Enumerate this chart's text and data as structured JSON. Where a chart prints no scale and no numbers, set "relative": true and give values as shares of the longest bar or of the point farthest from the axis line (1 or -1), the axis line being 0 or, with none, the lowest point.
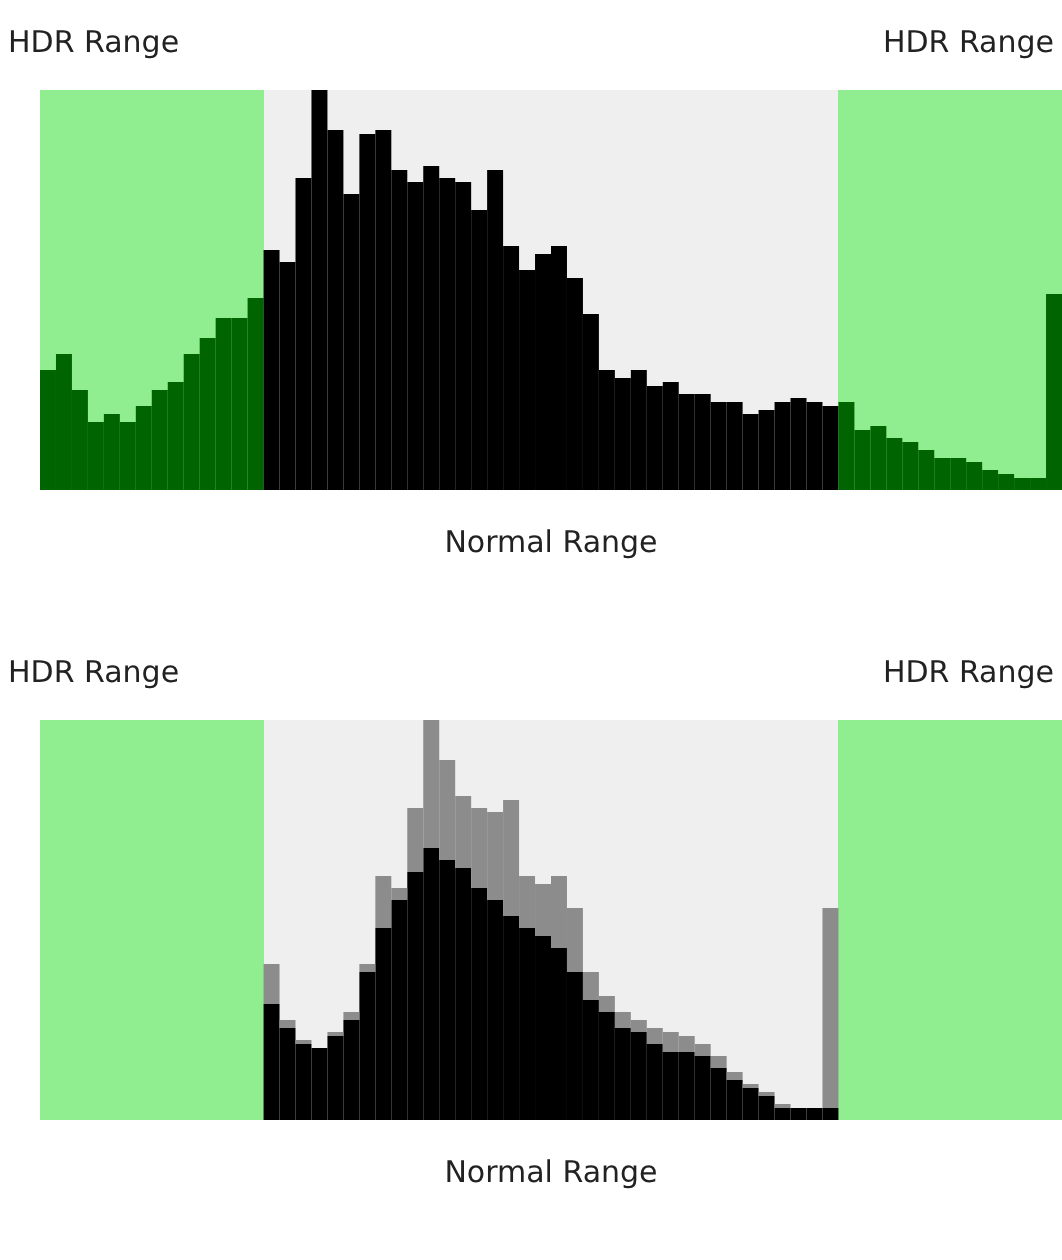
{
  "chart_data": [
    {
      "type": "bar",
      "relative": true,
      "categories": [
        null,
        null,
        null,
        null,
        null,
        null,
        null,
        null,
        null,
        null,
        null,
        null,
        null,
        null,
        null,
        null,
        null,
        null,
        null,
        null,
        null,
        null,
        null,
        null,
        null,
        null,
        null,
        null,
        null,
        null,
        null,
        null,
        null,
        null,
        null,
        null,
        null,
        null,
        null,
        null,
        null,
        null,
        null,
        null,
        null,
        null,
        null,
        null,
        null,
        null,
        null,
        null,
        null,
        null,
        null,
        null,
        null,
        null,
        null,
        null,
        null,
        null,
        null,
        null
      ],
      "values": [
        0.3,
        0.34,
        0.25,
        0.17,
        0.19,
        0.17,
        0.21,
        0.25,
        0.27,
        0.34,
        0.38,
        0.43,
        0.43,
        0.48,
        0.6,
        0.57,
        0.78,
        1.0,
        0.9,
        0.74,
        0.89,
        0.9,
        0.8,
        0.77,
        0.81,
        0.78,
        0.77,
        0.7,
        0.8,
        0.61,
        0.55,
        0.59,
        0.61,
        0.53,
        0.44,
        0.3,
        0.28,
        0.3,
        0.26,
        0.27,
        0.24,
        0.24,
        0.22,
        0.22,
        0.19,
        0.2,
        0.22,
        0.23,
        0.22,
        0.21,
        0.22,
        0.15,
        0.16,
        0.13,
        0.12,
        0.1,
        0.08,
        0.08,
        0.07,
        0.05,
        0.04,
        0.03,
        0.03,
        0.49
      ],
      "colors": [
        "#006400",
        "#006400",
        "#006400",
        "#006400",
        "#006400",
        "#006400",
        "#006400",
        "#006400",
        "#006400",
        "#006400",
        "#006400",
        "#006400",
        "#006400",
        "#006400",
        "#000000",
        "#000000",
        "#000000",
        "#000000",
        "#000000",
        "#000000",
        "#000000",
        "#000000",
        "#000000",
        "#000000",
        "#000000",
        "#000000",
        "#000000",
        "#000000",
        "#000000",
        "#000000",
        "#000000",
        "#000000",
        "#000000",
        "#000000",
        "#000000",
        "#000000",
        "#000000",
        "#000000",
        "#000000",
        "#000000",
        "#000000",
        "#000000",
        "#000000",
        "#000000",
        "#000000",
        "#000000",
        "#000000",
        "#000000",
        "#000000",
        "#000000",
        "#006400",
        "#006400",
        "#006400",
        "#006400",
        "#006400",
        "#006400",
        "#006400",
        "#006400",
        "#006400",
        "#006400",
        "#006400",
        "#006400",
        "#006400",
        "#006400"
      ],
      "annotations": [
        "HDR Range",
        "HDR Range",
        "Normal Range"
      ]
    },
    {
      "type": "bar",
      "relative": true,
      "stacked": true,
      "categories": [
        null,
        null,
        null,
        null,
        null,
        null,
        null,
        null,
        null,
        null,
        null,
        null,
        null,
        null,
        null,
        null,
        null,
        null,
        null,
        null,
        null,
        null,
        null,
        null,
        null,
        null,
        null,
        null,
        null,
        null,
        null,
        null,
        null,
        null,
        null,
        null
      ],
      "series": [
        {
          "color": "#000000",
          "values": [
            0.29,
            0.23,
            0.19,
            0.18,
            0.21,
            0.25,
            0.37,
            0.48,
            0.55,
            0.62,
            0.68,
            0.65,
            0.63,
            0.58,
            0.55,
            0.51,
            0.48,
            0.46,
            0.43,
            0.37,
            0.3,
            0.27,
            0.23,
            0.22,
            0.19,
            0.17,
            0.17,
            0.16,
            0.13,
            0.1,
            0.08,
            0.06,
            0.03,
            0.03,
            0.03,
            0.03
          ]
        },
        {
          "color": "#8c8c8c",
          "values": [
            0.1,
            0.02,
            0.01,
            0,
            0.01,
            0.02,
            0.02,
            0.13,
            0.03,
            0.16,
            0.32,
            0.25,
            0.18,
            0.2,
            0.22,
            0.29,
            0.13,
            0.13,
            0.18,
            0.16,
            0.07,
            0.04,
            0.04,
            0.03,
            0.04,
            0.05,
            0.04,
            0.03,
            0.03,
            0.02,
            0.01,
            0.01,
            0.01,
            0,
            0,
            0.5
          ]
        }
      ],
      "annotations": [
        "HDR Range",
        "HDR Range",
        "Normal Range"
      ]
    }
  ]
}
